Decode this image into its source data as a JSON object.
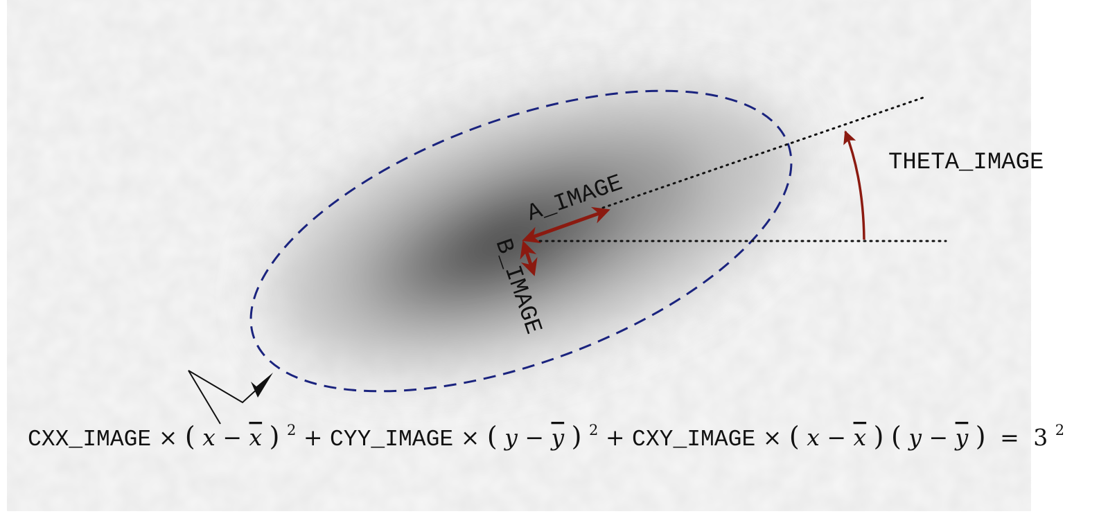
{
  "labels": {
    "a_image": "A_IMAGE",
    "b_image": "B_IMAGE",
    "theta_image": "THETA_IMAGE"
  },
  "equation": {
    "cxx": "CXX_IMAGE",
    "cyy": "CYY_IMAGE",
    "cxy": "CXY_IMAGE",
    "times": "×",
    "plus": "+",
    "minus": "−",
    "lparen": "(",
    "rparen": ")",
    "x": "x",
    "y": "y",
    "xbar": "x",
    "ybar": "y",
    "square": "2",
    "equals": "=",
    "rhs_base": "3",
    "rhs_exp": "2"
  },
  "colors": {
    "ellipse": "#1a237e",
    "arrow": "#8b1a10",
    "axis_line": "#111111",
    "blob_core": "#3a3a3a",
    "background": "#ffffff",
    "noise": "#f1f1f1"
  }
}
